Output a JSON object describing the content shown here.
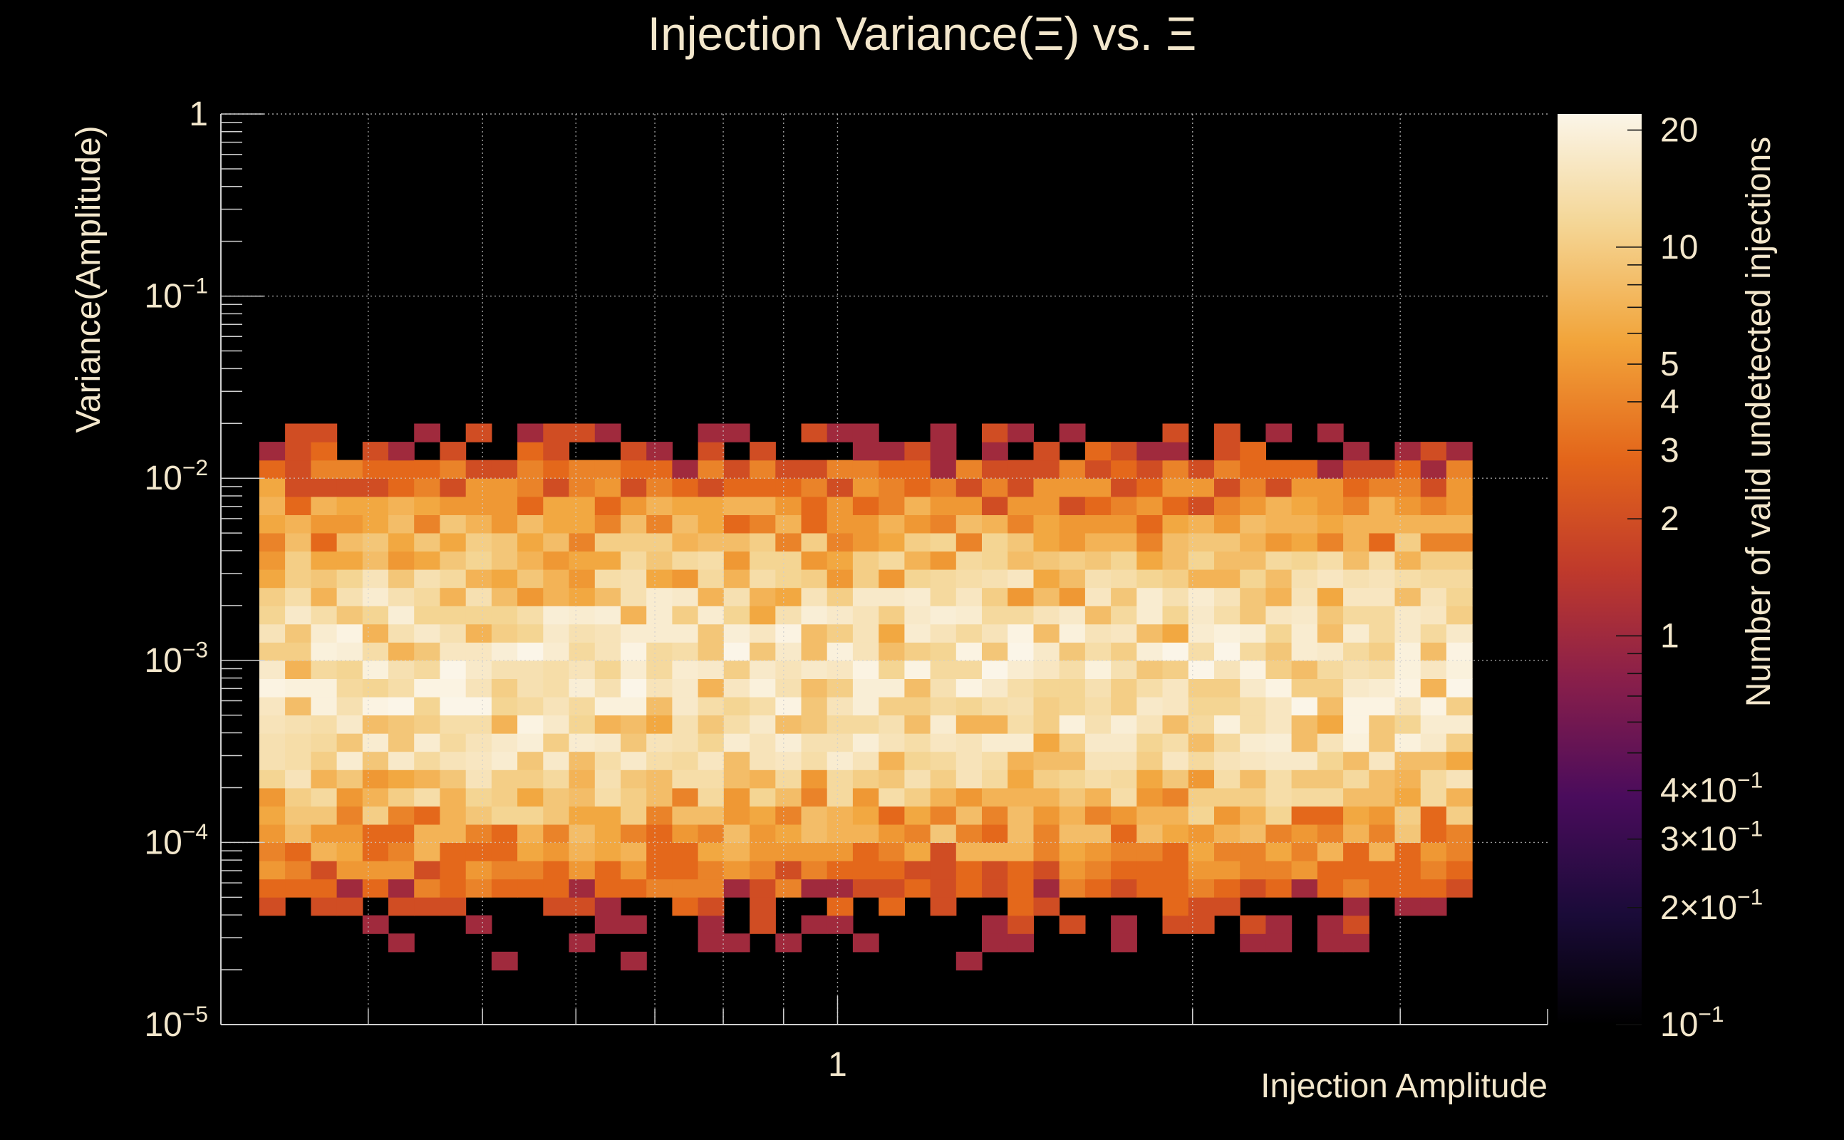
{
  "chart_data": {
    "type": "heatmap",
    "title": "Injection Variance(Ξ) vs. Ξ",
    "xlabel": "Injection Amplitude",
    "ylabel": "Variance(Amplitude)",
    "zlabel": "Number of valid undetected injections",
    "x_scale": "log",
    "y_scale": "log",
    "z_scale": "log",
    "xlim": [
      0.3,
      4.0
    ],
    "ylim": [
      1e-05,
      1
    ],
    "zlim": [
      0.1,
      22
    ],
    "x_tick_labels": [
      {
        "value": 1,
        "label": "1"
      }
    ],
    "y_tick_labels": [
      {
        "value": 1,
        "label": "1",
        "exp": ""
      },
      {
        "value": 0.1,
        "label": "10",
        "exp": "−1"
      },
      {
        "value": 0.01,
        "label": "10",
        "exp": "−2"
      },
      {
        "value": 0.001,
        "label": "10",
        "exp": "−3"
      },
      {
        "value": 0.0001,
        "label": "10",
        "exp": "−4"
      },
      {
        "value": 1e-05,
        "label": "10",
        "exp": "−5"
      }
    ],
    "z_tick_labels": [
      {
        "value": 20,
        "label": "20",
        "exp": ""
      },
      {
        "value": 10,
        "label": "10",
        "exp": ""
      },
      {
        "value": 5,
        "label": "5",
        "exp": ""
      },
      {
        "value": 4,
        "label": "4",
        "exp": ""
      },
      {
        "value": 3,
        "label": "3",
        "exp": ""
      },
      {
        "value": 2,
        "label": "2",
        "exp": ""
      },
      {
        "value": 1,
        "label": "1",
        "exp": ""
      },
      {
        "value": 0.4,
        "label": "4×10",
        "exp": "−1"
      },
      {
        "value": 0.3,
        "label": "3×10",
        "exp": "−1"
      },
      {
        "value": 0.2,
        "label": "2×10",
        "exp": "−1"
      },
      {
        "value": 0.1,
        "label": "10",
        "exp": "−1"
      }
    ],
    "grid": true,
    "colormap": [
      "#000000",
      "#1a0b38",
      "#4a0c5c",
      "#8a1f4a",
      "#c03a2b",
      "#e3651a",
      "#f2a43a",
      "#f4d696",
      "#fbf5e8"
    ],
    "bins": {
      "x_log_edges": [
        -0.4903,
        0.56
      ],
      "y_log_edges": [
        -5,
        0
      ],
      "nx": 48,
      "ny": 50,
      "fill_x_log": [
        -0.4903,
        0.5203
      ],
      "fill_y_log": [
        -4.8,
        -1.7
      ],
      "core_center_y_log": -3.1,
      "core_peak_counts": 15,
      "seed": 20240611
    }
  }
}
